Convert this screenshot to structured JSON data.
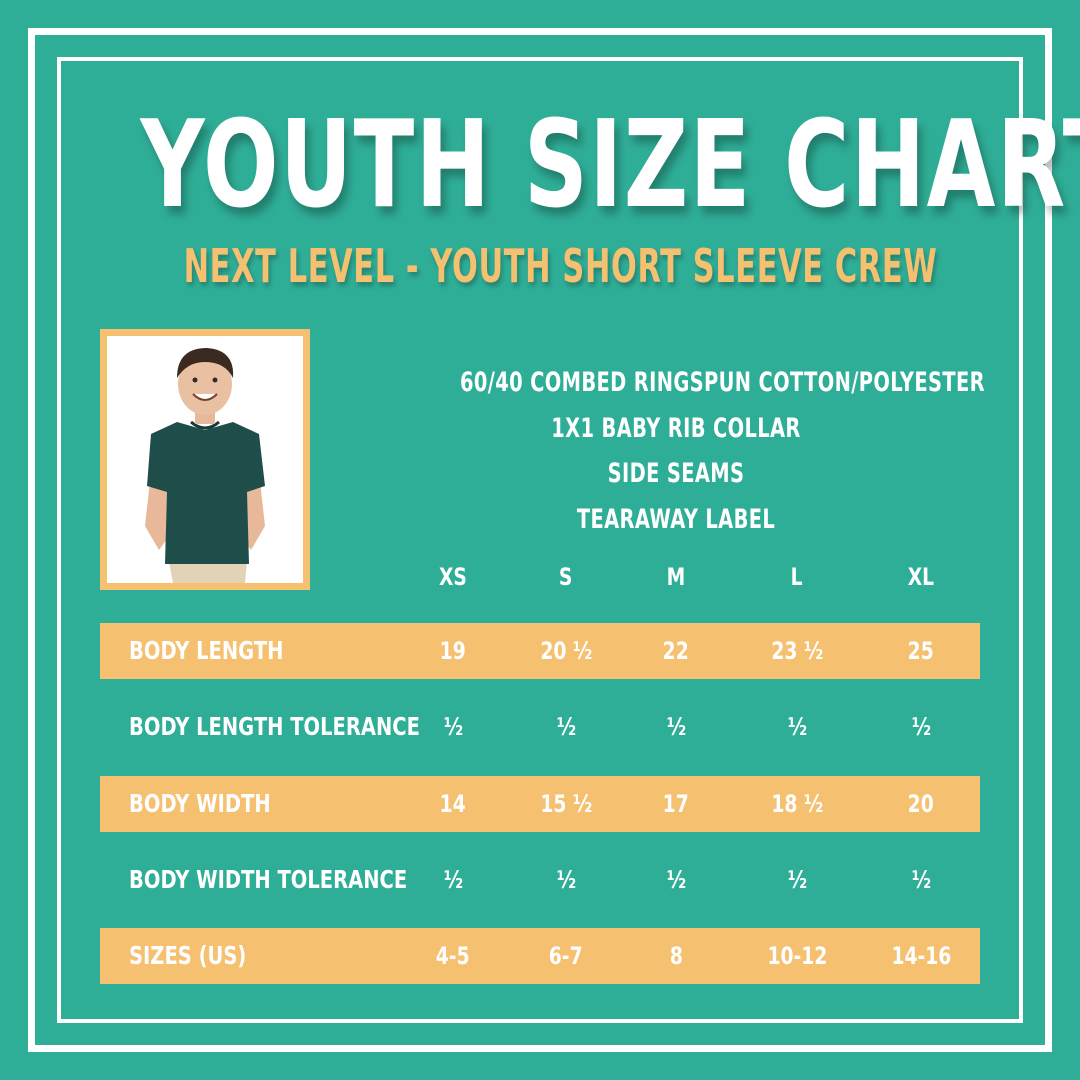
{
  "title": "YOUTH SIZE CHART",
  "subtitle": "NEXT LEVEL - YOUTH SHORT SLEEVE CREW",
  "features": [
    "60/40 COMBED RINGSPUN COTTON/POLYESTER",
    "1X1 BABY RIB COLLAR",
    "SIDE SEAMS",
    "TEARAWAY LABEL"
  ],
  "sizes": [
    "XS",
    "S",
    "M",
    "L",
    "XL"
  ],
  "rows": [
    {
      "label": "BODY LENGTH",
      "values": [
        "19",
        "20 ½",
        "22",
        "23 ½",
        "25"
      ],
      "highlight": true
    },
    {
      "label": "BODY LENGTH TOLERANCE",
      "values": [
        "½",
        "½",
        "½",
        "½",
        "½"
      ],
      "highlight": false
    },
    {
      "label": "BODY WIDTH",
      "values": [
        "14",
        "15 ½",
        "17",
        "18 ½",
        "20"
      ],
      "highlight": true
    },
    {
      "label": "BODY WIDTH TOLERANCE",
      "values": [
        "½",
        "½",
        "½",
        "½",
        "½"
      ],
      "highlight": false
    },
    {
      "label": "SIZES (US)",
      "values": [
        "4-5",
        "6-7",
        "8",
        "10-12",
        "14-16"
      ],
      "highlight": true
    }
  ],
  "colors": {
    "background": "#2fae97",
    "accent": "#f5c070",
    "text": "#ffffff",
    "shirt": "#1f4d4a"
  },
  "photo": {
    "subject": "child-model-in-dark-teal-tshirt"
  }
}
